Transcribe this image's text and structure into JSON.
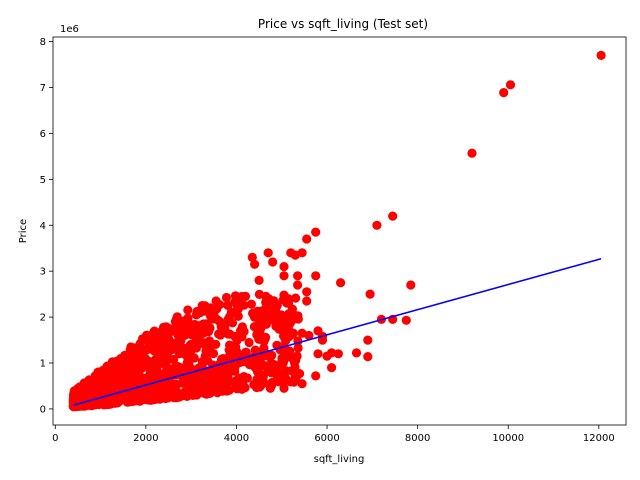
{
  "chart_data": {
    "type": "scatter",
    "title": "Price vs sqft_living (Test set)",
    "xlabel": "sqft_living",
    "ylabel": "Price",
    "y_offset_label": "1e6",
    "xlim": [
      -50,
      12600
    ],
    "ylim": [
      -0.35,
      8.1
    ],
    "xticks": [
      0,
      2000,
      4000,
      6000,
      8000,
      10000,
      12000
    ],
    "yticks": [
      0,
      1,
      2,
      3,
      4,
      5,
      6,
      7,
      8
    ],
    "grid": false,
    "point_color": "#ff0000",
    "line_color": "#0000ff",
    "regression_line": {
      "x": [
        390,
        12050
      ],
      "y": [
        0.08,
        3.27
      ]
    },
    "outliers": [
      [
        12050,
        7.7
      ],
      [
        10050,
        7.06
      ],
      [
        9900,
        6.89
      ],
      [
        9200,
        5.57
      ],
      [
        7450,
        4.2
      ],
      [
        7100,
        4.0
      ],
      [
        5750,
        3.85
      ],
      [
        5550,
        3.7
      ],
      [
        4700,
        3.4
      ],
      [
        5200,
        3.4
      ],
      [
        5450,
        3.4
      ],
      [
        4350,
        3.3
      ],
      [
        5050,
        3.1
      ],
      [
        4800,
        3.2
      ],
      [
        5300,
        3.35
      ],
      [
        6300,
        2.75
      ],
      [
        7850,
        2.7
      ],
      [
        6950,
        2.5
      ],
      [
        5750,
        2.9
      ],
      [
        5050,
        2.9
      ],
      [
        5350,
        2.9
      ],
      [
        4650,
        2.45
      ],
      [
        5550,
        2.55
      ],
      [
        5550,
        2.35
      ],
      [
        7200,
        1.95
      ],
      [
        7450,
        1.95
      ],
      [
        7750,
        1.93
      ],
      [
        6900,
        1.5
      ],
      [
        6900,
        1.14
      ],
      [
        6650,
        1.22
      ],
      [
        6100,
        1.22
      ],
      [
        6250,
        1.2
      ],
      [
        6000,
        1.15
      ],
      [
        5800,
        1.2
      ],
      [
        6100,
        0.9
      ],
      [
        5750,
        0.72
      ],
      [
        5450,
        0.55
      ],
      [
        5050,
        0.45
      ],
      [
        4750,
        0.45
      ],
      [
        5000,
        0.62
      ],
      [
        5250,
        0.6
      ],
      [
        5600,
        1.6
      ],
      [
        5900,
        1.5
      ],
      [
        5900,
        1.58
      ],
      [
        5800,
        1.7
      ],
      [
        5450,
        1.65
      ],
      [
        5000,
        1.72
      ],
      [
        5150,
        2.3
      ],
      [
        5050,
        2.48
      ],
      [
        4500,
        2.8
      ],
      [
        4900,
        2.25
      ],
      [
        4600,
        2.15
      ],
      [
        5350,
        2.7
      ],
      [
        4200,
        2.45
      ],
      [
        4050,
        2.28
      ],
      [
        4400,
        3.15
      ]
    ],
    "cloud": {
      "n": 1150,
      "x_range": [
        400,
        5400
      ],
      "bands": [
        {
          "x": 400,
          "y_min": 0.05,
          "y_max": 0.38
        },
        {
          "x": 1000,
          "y_min": 0.08,
          "y_max": 0.85
        },
        {
          "x": 2000,
          "y_min": 0.18,
          "y_max": 1.6
        },
        {
          "x": 3000,
          "y_min": 0.28,
          "y_max": 2.2
        },
        {
          "x": 4000,
          "y_min": 0.4,
          "y_max": 2.5
        },
        {
          "x": 5400,
          "y_min": 0.6,
          "y_max": 2.5
        }
      ]
    }
  }
}
